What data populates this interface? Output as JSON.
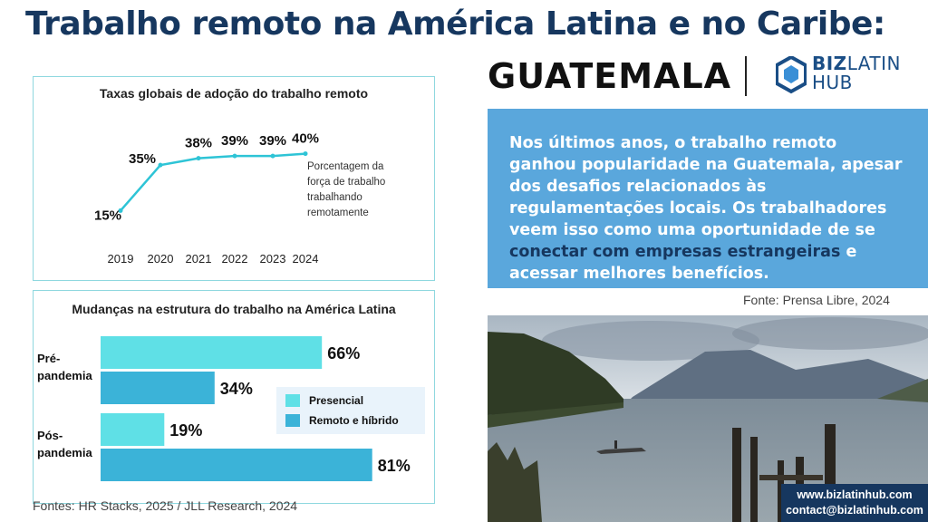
{
  "header": {
    "title": "Trabalho remoto na América Latina e no Caribe:",
    "country": "GUATEMALA",
    "logo_line1_bold": "BIZ",
    "logo_line1_rest": "LATIN",
    "logo_line2": "HUB"
  },
  "adoption_chart": {
    "title": "Taxas globais de adoção do trabalho remoto",
    "annotation": [
      "Porcentagem da",
      "força de trabalho",
      "trabalhando",
      "remotamente"
    ]
  },
  "structure_chart": {
    "title": "Mudanças na estrutura do trabalho na América Latina",
    "groups": [
      {
        "label_lines": [
          "Pré-",
          "pandemia"
        ]
      },
      {
        "label_lines": [
          "Pós-",
          "pandemia"
        ]
      }
    ]
  },
  "chart_data": [
    {
      "type": "line",
      "title": "Taxas globais de adoção do trabalho remoto",
      "x": [
        "2019",
        "2020",
        "2021",
        "2022",
        "2023",
        "2024"
      ],
      "values": [
        15,
        35,
        38,
        39,
        39,
        40
      ],
      "value_labels": [
        "15%",
        "35%",
        "38%",
        "39%",
        "39%",
        "40%"
      ],
      "ylim": [
        10,
        45
      ],
      "grid": false,
      "color": "#2ec4d6"
    },
    {
      "type": "bar",
      "orientation": "horizontal",
      "title": "Mudanças na estrutura do trabalho na América Latina",
      "categories": [
        "Pré-pandemia",
        "Pós-pandemia"
      ],
      "series": [
        {
          "name": "Presencial",
          "values": [
            66,
            19
          ],
          "value_labels": [
            "66%",
            "19%"
          ],
          "color": "#5fe0e6"
        },
        {
          "name": "Remoto e híbrido",
          "values": [
            34,
            81
          ],
          "value_labels": [
            "34%",
            "81%"
          ],
          "color": "#3bb3d8"
        }
      ],
      "xlim": [
        0,
        100
      ],
      "legend": "right"
    }
  ],
  "sources_left": "Fontes: HR Stacks, 2025 / JLL Research, 2024",
  "info_box": {
    "text_before": "Nos últimos anos, o trabalho remoto ganhou popularidade na Guatemala, apesar dos desafios relacionados às regulamentações locais. Os trabalhadores veem isso como uma oportunidade de se ",
    "highlight": "conectar com empresas estrangeiras",
    "text_after": " e acessar melhores benefícios."
  },
  "source_right": "Fonte: Prensa Libre, 2024",
  "contact": {
    "website": "www.bizlatinhub.com",
    "email": "contact@bizlatinhub.com"
  },
  "colors": {
    "navy": "#16375f",
    "box_blue": "#5aa7dc",
    "panel_border": "#8fd8df"
  }
}
